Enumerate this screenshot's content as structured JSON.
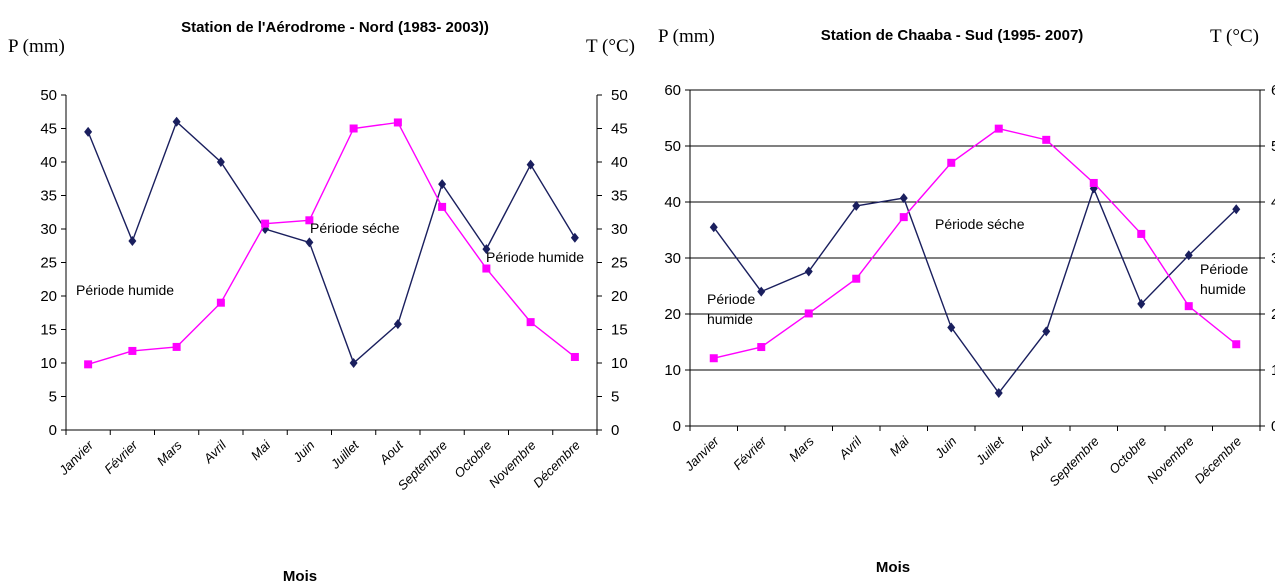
{
  "chart_data": [
    {
      "type": "line",
      "title": "Station de l'Aérodrome - Nord (1983- 2003))",
      "ylabel_left": "P (mm)",
      "ylabel_right": "T (°C)",
      "xlabel": "Mois",
      "ylim": [
        0,
        50
      ],
      "yticks": [
        0,
        5,
        10,
        15,
        20,
        25,
        30,
        35,
        40,
        45,
        50
      ],
      "grid": false,
      "categories": [
        "Janvier",
        "Février",
        "Mars",
        "Avril",
        "Mai",
        "Juin",
        "Juillet",
        "Aout",
        "Septembre",
        "Octobre",
        "Novembre",
        "Décembre"
      ],
      "series": [
        {
          "color": "#1a1f5e",
          "marker": "diamond",
          "axis": "left",
          "values": [
            44.5,
            28.2,
            46.0,
            40.0,
            30.0,
            28.0,
            10.0,
            15.8,
            36.7,
            27.0,
            39.6,
            28.7
          ]
        },
        {
          "color": "#ff00ff",
          "marker": "square",
          "axis": "right",
          "values": [
            9.8,
            11.8,
            12.4,
            19.0,
            30.8,
            31.3,
            45.0,
            45.9,
            33.3,
            24.1,
            16.1,
            10.9
          ]
        }
      ],
      "annotations": [
        "Période humide",
        "Période séche",
        "Période humide"
      ]
    },
    {
      "type": "line",
      "title": "Station de Chaaba - Sud (1995- 2007)",
      "ylabel_left": "P (mm)",
      "ylabel_right": "T (°C)",
      "xlabel": "Mois",
      "ylim": [
        0,
        60
      ],
      "yticks": [
        0,
        10,
        20,
        30,
        40,
        50,
        60
      ],
      "grid": true,
      "categories": [
        "Janvier",
        "Février",
        "Mars",
        "Avril",
        "Mai",
        "Juin",
        "Juillet",
        "Aout",
        "Septembre",
        "Octobre",
        "Novembre",
        "Décembre"
      ],
      "series": [
        {
          "color": "#1a1f5e",
          "marker": "diamond",
          "axis": "left",
          "values": [
            35.5,
            24.0,
            27.6,
            39.3,
            40.7,
            17.6,
            5.9,
            16.9,
            42.4,
            21.8,
            30.5,
            38.7
          ]
        },
        {
          "color": "#ff00ff",
          "marker": "square",
          "axis": "right",
          "values": [
            12.1,
            14.1,
            20.1,
            26.3,
            37.3,
            47.0,
            53.1,
            51.1,
            43.4,
            34.3,
            21.4,
            14.6
          ]
        }
      ],
      "annotations": [
        "Période\nhumide",
        "Période séche",
        "Période\nhumide"
      ]
    }
  ]
}
